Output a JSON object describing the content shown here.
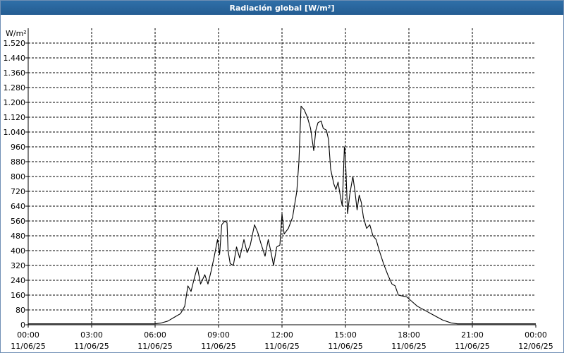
{
  "chart_data": {
    "type": "line",
    "title": "Radiación global [W/m²]",
    "ylabel": "W/m²",
    "xlabel": "",
    "ylim": [
      0,
      1600
    ],
    "xlim_hours": [
      0,
      24
    ],
    "y_ticks": [
      0,
      80,
      160,
      240,
      320,
      400,
      480,
      560,
      640,
      720,
      800,
      880,
      960,
      1040,
      1120,
      1200,
      1280,
      1360,
      1440,
      1520
    ],
    "y_tick_labels": [
      "0",
      "80",
      "160",
      "240",
      "320",
      "400",
      "480",
      "560",
      "640",
      "720",
      "800",
      "880",
      "960",
      "1.040",
      "1.120",
      "1.200",
      "1.280",
      "1.360",
      "1.440",
      "1.520"
    ],
    "x_ticks": [
      {
        "hour": 0,
        "time": "00:00",
        "date": "11/06/25"
      },
      {
        "hour": 3,
        "time": "03:00",
        "date": "11/06/25"
      },
      {
        "hour": 6,
        "time": "06:00",
        "date": "11/06/25"
      },
      {
        "hour": 9,
        "time": "09:00",
        "date": "11/06/25"
      },
      {
        "hour": 12,
        "time": "12:00",
        "date": "11/06/25"
      },
      {
        "hour": 15,
        "time": "15:00",
        "date": "11/06/25"
      },
      {
        "hour": 18,
        "time": "18:00",
        "date": "11/06/25"
      },
      {
        "hour": 21,
        "time": "21:00",
        "date": "11/06/25"
      },
      {
        "hour": 24,
        "time": "00:00",
        "date": "12/06/25"
      }
    ],
    "grid": true,
    "series": [
      {
        "color": "#000000",
        "points": [
          [
            0,
            5
          ],
          [
            3,
            5
          ],
          [
            6,
            5
          ],
          [
            6.3,
            10
          ],
          [
            6.6,
            20
          ],
          [
            6.9,
            40
          ],
          [
            7.2,
            60
          ],
          [
            7.4,
            100
          ],
          [
            7.55,
            210
          ],
          [
            7.7,
            180
          ],
          [
            7.85,
            250
          ],
          [
            8.0,
            310
          ],
          [
            8.15,
            220
          ],
          [
            8.35,
            270
          ],
          [
            8.5,
            220
          ],
          [
            8.65,
            290
          ],
          [
            8.8,
            370
          ],
          [
            8.95,
            460
          ],
          [
            9.05,
            380
          ],
          [
            9.15,
            540
          ],
          [
            9.3,
            560
          ],
          [
            9.4,
            550
          ],
          [
            9.45,
            400
          ],
          [
            9.55,
            330
          ],
          [
            9.7,
            320
          ],
          [
            9.85,
            420
          ],
          [
            10.0,
            360
          ],
          [
            10.2,
            460
          ],
          [
            10.35,
            390
          ],
          [
            10.5,
            430
          ],
          [
            10.7,
            540
          ],
          [
            10.85,
            500
          ],
          [
            11.0,
            440
          ],
          [
            11.2,
            370
          ],
          [
            11.35,
            460
          ],
          [
            11.5,
            380
          ],
          [
            11.6,
            320
          ],
          [
            11.75,
            420
          ],
          [
            11.9,
            430
          ],
          [
            12.0,
            600
          ],
          [
            12.1,
            490
          ],
          [
            12.3,
            520
          ],
          [
            12.5,
            580
          ],
          [
            12.7,
            720
          ],
          [
            12.8,
            880
          ],
          [
            12.9,
            1180
          ],
          [
            13.05,
            1160
          ],
          [
            13.2,
            1120
          ],
          [
            13.35,
            1060
          ],
          [
            13.5,
            940
          ],
          [
            13.6,
            1050
          ],
          [
            13.7,
            1090
          ],
          [
            13.85,
            1100
          ],
          [
            13.95,
            1060
          ],
          [
            14.1,
            1050
          ],
          [
            14.2,
            1000
          ],
          [
            14.3,
            840
          ],
          [
            14.45,
            760
          ],
          [
            14.55,
            730
          ],
          [
            14.65,
            770
          ],
          [
            14.75,
            700
          ],
          [
            14.85,
            640
          ],
          [
            14.95,
            960
          ],
          [
            15.0,
            900
          ],
          [
            15.1,
            600
          ],
          [
            15.2,
            700
          ],
          [
            15.35,
            800
          ],
          [
            15.45,
            720
          ],
          [
            15.55,
            620
          ],
          [
            15.65,
            700
          ],
          [
            15.75,
            660
          ],
          [
            15.85,
            580
          ],
          [
            16.0,
            520
          ],
          [
            16.15,
            540
          ],
          [
            16.3,
            480
          ],
          [
            16.45,
            460
          ],
          [
            16.6,
            400
          ],
          [
            16.8,
            330
          ],
          [
            17.0,
            270
          ],
          [
            17.2,
            220
          ],
          [
            17.35,
            210
          ],
          [
            17.5,
            160
          ],
          [
            17.7,
            155
          ],
          [
            17.9,
            150
          ],
          [
            18.1,
            130
          ],
          [
            18.4,
            100
          ],
          [
            18.8,
            75
          ],
          [
            19.2,
            50
          ],
          [
            19.6,
            25
          ],
          [
            20.0,
            10
          ],
          [
            20.3,
            5
          ],
          [
            21,
            5
          ],
          [
            24,
            5
          ]
        ]
      }
    ]
  }
}
